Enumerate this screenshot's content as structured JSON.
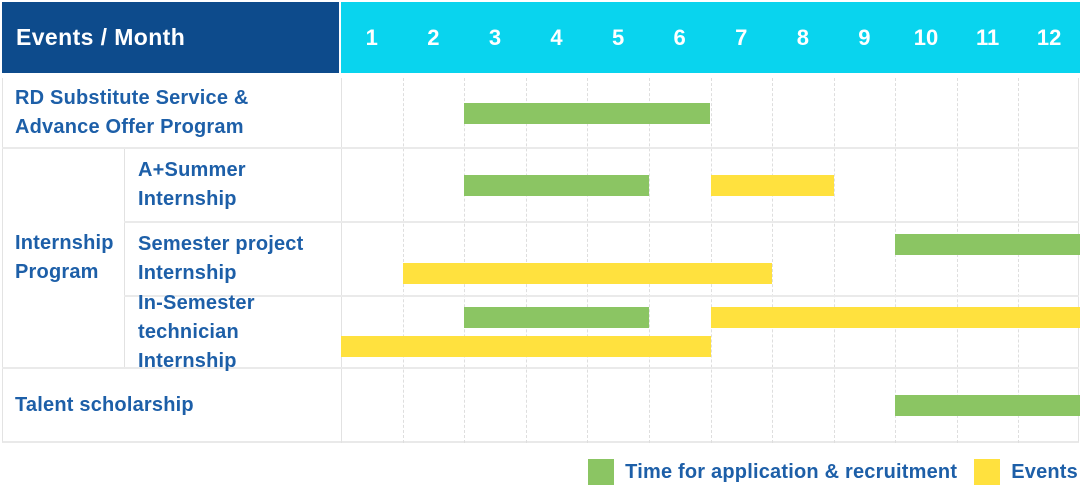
{
  "colors": {
    "navy": "#0d4b8c",
    "cyan": "#09d4ee",
    "green": "#8bc563",
    "yellow": "#ffe13e",
    "text_blue": "#1d5fa8",
    "grid": "#dedede",
    "separator": "#eaeaea",
    "white": "#ffffff"
  },
  "header": {
    "title": "Events / Month",
    "months": [
      "1",
      "2",
      "3",
      "4",
      "5",
      "6",
      "7",
      "8",
      "9",
      "10",
      "11",
      "12"
    ]
  },
  "groups": [
    {
      "label_lines": [
        "Internship",
        "Program"
      ],
      "row_start": 1,
      "row_end": 3
    }
  ],
  "rows": [
    {
      "label_lines": [
        "RD Substitute Service &",
        "Advance Offer Program"
      ],
      "group": null,
      "tracks": [
        [
          {
            "type": "green",
            "start": 3,
            "end": 6
          }
        ]
      ]
    },
    {
      "label_lines": [
        "A+Summer",
        "Internship"
      ],
      "group": "Internship Program",
      "tracks": [
        [
          {
            "type": "green",
            "start": 3,
            "end": 5
          },
          {
            "type": "yellow",
            "start": 7,
            "end": 8
          }
        ]
      ]
    },
    {
      "label_lines": [
        "Semester project",
        "Internship"
      ],
      "group": "Internship Program",
      "tracks": [
        [
          {
            "type": "green",
            "start": 10,
            "end": 12
          }
        ],
        [
          {
            "type": "yellow",
            "start": 2,
            "end": 7
          }
        ]
      ]
    },
    {
      "label_lines": [
        "In-Semester",
        "technician Internship"
      ],
      "group": "Internship Program",
      "tracks": [
        [
          {
            "type": "green",
            "start": 3,
            "end": 5
          },
          {
            "type": "yellow",
            "start": 7,
            "end": 12
          }
        ],
        [
          {
            "type": "yellow",
            "start": 1,
            "end": 6
          }
        ]
      ]
    },
    {
      "label_lines": [
        "Talent scholarship"
      ],
      "group": null,
      "tracks": [
        [
          {
            "type": "green",
            "start": 10,
            "end": 12
          }
        ]
      ]
    }
  ],
  "legend": [
    {
      "type": "green",
      "label": "Time for application & recruitment"
    },
    {
      "type": "yellow",
      "label": "Events"
    }
  ],
  "chart_data": {
    "type": "table",
    "subtype": "gantt",
    "title": "Events / Month",
    "x_categories": [
      1,
      2,
      3,
      4,
      5,
      6,
      7,
      8,
      9,
      10,
      11,
      12
    ],
    "x_range": [
      1,
      12
    ],
    "grid": true,
    "legend_position": "bottom-right",
    "series_legend": [
      {
        "name": "Time for application & recruitment",
        "color": "#8bc563"
      },
      {
        "name": "Events",
        "color": "#ffe13e"
      }
    ],
    "rows": [
      {
        "category": "RD Substitute Service & Advance Offer Program",
        "group": null,
        "bars": [
          {
            "series": "Time for application & recruitment",
            "start_month": 3,
            "end_month": 6
          }
        ]
      },
      {
        "category": "A+Summer Internship",
        "group": "Internship Program",
        "bars": [
          {
            "series": "Time for application & recruitment",
            "start_month": 3,
            "end_month": 5
          },
          {
            "series": "Events",
            "start_month": 7,
            "end_month": 8
          }
        ]
      },
      {
        "category": "Semester project Internship",
        "group": "Internship Program",
        "bars": [
          {
            "series": "Time for application & recruitment",
            "start_month": 10,
            "end_month": 12
          },
          {
            "series": "Events",
            "start_month": 2,
            "end_month": 7
          }
        ]
      },
      {
        "category": "In-Semester technician Internship",
        "group": "Internship Program",
        "bars": [
          {
            "series": "Time for application & recruitment",
            "start_month": 3,
            "end_month": 5
          },
          {
            "series": "Events",
            "start_month": 7,
            "end_month": 12
          },
          {
            "series": "Events",
            "start_month": 1,
            "end_month": 6
          }
        ]
      },
      {
        "category": "Talent scholarship",
        "group": null,
        "bars": [
          {
            "series": "Time for application & recruitment",
            "start_month": 10,
            "end_month": 12
          }
        ]
      }
    ]
  }
}
